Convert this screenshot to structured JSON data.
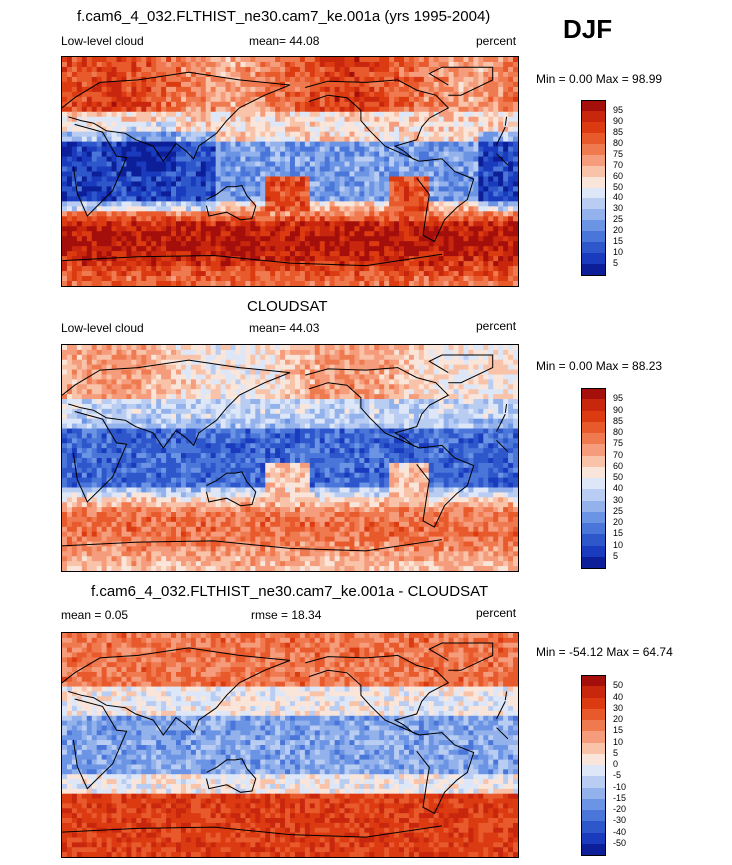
{
  "season": "DJF",
  "panels": [
    {
      "title": "f.cam6_4_032.FLTHIST_ne30.cam7_ke.001a (yrs 1995-2004)",
      "left_label": "Low-level cloud",
      "center_label": "mean=  44.08",
      "right_label": "percent",
      "minmax": "Min =   0.00 Max =  98.99"
    },
    {
      "title": "CLOUDSAT",
      "left_label": "Low-level cloud",
      "center_label": "mean=  44.03",
      "right_label": "percent",
      "minmax": "Min =   0.00 Max =  88.23"
    },
    {
      "title": "f.cam6_4_032.FLTHIST_ne30.cam7_ke.001a - CLOUDSAT",
      "left_label": "mean =   0.05",
      "center_label": "rmse =  18.34",
      "right_label": "percent",
      "minmax": "Min = -54.12 Max =  64.74"
    }
  ],
  "chart_data": [
    {
      "type": "heatmap",
      "title": "f.cam6_4_032.FLTHIST_ne30.cam7_ke.001a (yrs 1995-2004)",
      "variable": "Low-level cloud",
      "units": "percent",
      "mean": 44.08,
      "min": 0.0,
      "max": 98.99,
      "colorbar_levels": [
        5,
        10,
        15,
        20,
        25,
        30,
        40,
        50,
        60,
        70,
        75,
        80,
        85,
        90,
        95
      ],
      "colorbar_labels": [
        "95",
        "90",
        "85",
        "80",
        "75",
        "70",
        "60",
        "50",
        "40",
        "30",
        "25",
        "20",
        "15",
        "10",
        "5"
      ],
      "colors": [
        "#a50f0b",
        "#c8270e",
        "#dc3b12",
        "#e85a2c",
        "#f07a50",
        "#f59c7c",
        "#f8c3a8",
        "#fae5da",
        "#dde7f7",
        "#b9cdf2",
        "#93b2ec",
        "#6c94e4",
        "#4a76da",
        "#2e57cc",
        "#1a3bbd",
        "#0c1f99"
      ]
    },
    {
      "type": "heatmap",
      "title": "CLOUDSAT",
      "variable": "Low-level cloud",
      "units": "percent",
      "mean": 44.03,
      "min": 0.0,
      "max": 88.23,
      "colorbar_levels": [
        5,
        10,
        15,
        20,
        25,
        30,
        40,
        50,
        60,
        70,
        75,
        80,
        85,
        90,
        95
      ],
      "colorbar_labels": [
        "95",
        "90",
        "85",
        "80",
        "75",
        "70",
        "60",
        "50",
        "40",
        "30",
        "25",
        "20",
        "15",
        "10",
        "5"
      ],
      "colors": [
        "#a50f0b",
        "#c8270e",
        "#dc3b12",
        "#e85a2c",
        "#f07a50",
        "#f59c7c",
        "#f8c3a8",
        "#fae5da",
        "#dde7f7",
        "#b9cdf2",
        "#93b2ec",
        "#6c94e4",
        "#4a76da",
        "#2e57cc",
        "#1a3bbd",
        "#0c1f99"
      ]
    },
    {
      "type": "heatmap",
      "title": "f.cam6_4_032.FLTHIST_ne30.cam7_ke.001a - CLOUDSAT",
      "variable": "difference",
      "units": "percent",
      "mean": 0.05,
      "rmse": 18.34,
      "min": -54.12,
      "max": 64.74,
      "colorbar_levels": [
        -50,
        -40,
        -30,
        -20,
        -15,
        -10,
        -5,
        0,
        5,
        10,
        15,
        20,
        30,
        40,
        50
      ],
      "colorbar_labels": [
        "50",
        "40",
        "30",
        "20",
        "15",
        "10",
        "5",
        "0",
        "-5",
        "-10",
        "-15",
        "-20",
        "-30",
        "-40",
        "-50"
      ],
      "colors": [
        "#a50f0b",
        "#c8270e",
        "#dc3b12",
        "#e85a2c",
        "#f07a50",
        "#f59c7c",
        "#f8c3a8",
        "#fae5da",
        "#dde7f7",
        "#b9cdf2",
        "#93b2ec",
        "#6c94e4",
        "#4a76da",
        "#2e57cc",
        "#1a3bbd",
        "#0c1f99"
      ]
    }
  ]
}
